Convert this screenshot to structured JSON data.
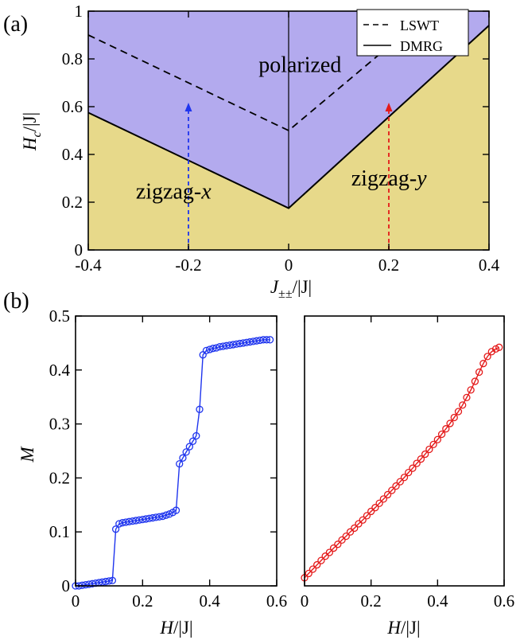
{
  "chart_data": [
    {
      "type": "area",
      "panel_label": "(a)",
      "xlabel_main": "J",
      "xlabel_sub": "±±",
      "xlabel_tail": "/|J|",
      "ylabel_main": "H",
      "ylabel_sub": "c",
      "ylabel_tail": "/|J|",
      "xlim": [
        -0.4,
        0.4
      ],
      "ylim": [
        0,
        1
      ],
      "xticks": [
        -0.4,
        -0.2,
        0,
        0.2,
        0.4
      ],
      "xtick_labels": [
        "-0.4",
        "-0.2",
        "0",
        "0.2",
        "0.4"
      ],
      "yticks": [
        0,
        0.2,
        0.4,
        0.6,
        0.8,
        1
      ],
      "ytick_labels": [
        "0",
        "0.2",
        "0.4",
        "0.6",
        "0.8",
        "1"
      ],
      "legend": {
        "placement": "top-right",
        "entries": [
          {
            "label": "LSWT",
            "style": "dashed"
          },
          {
            "label": "DMRG",
            "style": "solid"
          }
        ]
      },
      "regions": [
        {
          "label": "polarized",
          "color": "#b3aaee",
          "label_at": [
            -0.06,
            0.745
          ]
        },
        {
          "label_main": "zigzag-",
          "label_italic": "x",
          "color": "#e7d98a",
          "label_at": [
            -0.305,
            0.215
          ]
        },
        {
          "label_main": "zigzag-",
          "label_italic": "y",
          "color": "#e7d98a",
          "label_at": [
            0.125,
            0.27
          ]
        }
      ],
      "series": [
        {
          "name": "DMRG",
          "style": "solid",
          "x": [
            -0.4,
            0,
            0.4
          ],
          "y": [
            0.575,
            0.175,
            0.94
          ]
        },
        {
          "name": "LSWT",
          "style": "dashed",
          "x": [
            -0.4,
            0,
            0.284
          ],
          "y": [
            0.9,
            0.5,
            1.0
          ]
        }
      ],
      "phase_line": {
        "x": [
          0,
          0
        ],
        "y": [
          0.175,
          1
        ]
      },
      "arrows": [
        {
          "x": -0.2,
          "y_from": 0,
          "y_to": 0.61,
          "color": "#1f35ee"
        },
        {
          "x": 0.2,
          "y_from": 0,
          "y_to": 0.61,
          "color": "#e41a1a"
        }
      ]
    },
    {
      "type": "line",
      "panel_label": "(b)",
      "ylabel": "M",
      "xlabel_main": "H",
      "xlabel_tail": "/|J|",
      "xlim": [
        0,
        0.6
      ],
      "ylim": [
        0,
        0.5
      ],
      "xticks": [
        0,
        0.2,
        0.4,
        0.6
      ],
      "xtick_labels": [
        "0",
        "0.2",
        "0.4",
        "0.6"
      ],
      "yticks": [
        0,
        0.1,
        0.2,
        0.3,
        0.4,
        0.5
      ],
      "ytick_labels": [
        "0",
        "0.1",
        "0.2",
        "0.3",
        "0.4",
        "0.5"
      ],
      "color": "#1f35ee",
      "x": [
        0.0,
        0.01,
        0.02,
        0.03,
        0.04,
        0.05,
        0.06,
        0.07,
        0.08,
        0.09,
        0.1,
        0.11,
        0.12,
        0.13,
        0.14,
        0.15,
        0.16,
        0.17,
        0.18,
        0.19,
        0.2,
        0.21,
        0.22,
        0.23,
        0.24,
        0.25,
        0.26,
        0.27,
        0.28,
        0.29,
        0.3,
        0.31,
        0.32,
        0.33,
        0.34,
        0.35,
        0.36,
        0.37,
        0.38,
        0.39,
        0.4,
        0.41,
        0.42,
        0.43,
        0.44,
        0.45,
        0.46,
        0.47,
        0.48,
        0.49,
        0.5,
        0.51,
        0.52,
        0.53,
        0.54,
        0.55,
        0.56,
        0.57,
        0.58
      ],
      "y": [
        0.0,
        0.0,
        0.001,
        0.002,
        0.003,
        0.004,
        0.005,
        0.006,
        0.007,
        0.008,
        0.009,
        0.01,
        0.105,
        0.115,
        0.117,
        0.118,
        0.119,
        0.12,
        0.121,
        0.122,
        0.123,
        0.124,
        0.125,
        0.126,
        0.127,
        0.128,
        0.129,
        0.131,
        0.133,
        0.136,
        0.14,
        0.226,
        0.237,
        0.248,
        0.258,
        0.268,
        0.278,
        0.327,
        0.428,
        0.436,
        0.438,
        0.44,
        0.441,
        0.443,
        0.444,
        0.445,
        0.446,
        0.447,
        0.448,
        0.449,
        0.45,
        0.451,
        0.452,
        0.453,
        0.454,
        0.455,
        0.456,
        0.456,
        0.456
      ]
    },
    {
      "type": "line",
      "xlabel_main": "H",
      "xlabel_tail": "/|J|",
      "xlim": [
        0,
        0.6
      ],
      "ylim": [
        0,
        0.5
      ],
      "xticks": [
        0,
        0.2,
        0.4,
        0.6
      ],
      "xtick_labels": [
        "0",
        "0.2",
        "0.4",
        "0.6"
      ],
      "color": "#e41a1a",
      "x": [
        0.0,
        0.0125,
        0.025,
        0.0375,
        0.05,
        0.0625,
        0.075,
        0.0875,
        0.1,
        0.1125,
        0.125,
        0.1375,
        0.15,
        0.1625,
        0.175,
        0.1875,
        0.2,
        0.2125,
        0.225,
        0.2375,
        0.25,
        0.2625,
        0.275,
        0.2875,
        0.3,
        0.3125,
        0.325,
        0.3375,
        0.35,
        0.3625,
        0.375,
        0.3875,
        0.4,
        0.4125,
        0.425,
        0.4375,
        0.45,
        0.4625,
        0.475,
        0.4875,
        0.5,
        0.5125,
        0.525,
        0.5375,
        0.55,
        0.5625,
        0.575,
        0.585
      ],
      "y": [
        0.015,
        0.023,
        0.031,
        0.039,
        0.047,
        0.055,
        0.062,
        0.07,
        0.077,
        0.085,
        0.092,
        0.1,
        0.107,
        0.115,
        0.122,
        0.13,
        0.138,
        0.145,
        0.153,
        0.161,
        0.169,
        0.177,
        0.185,
        0.193,
        0.201,
        0.21,
        0.218,
        0.227,
        0.235,
        0.244,
        0.253,
        0.262,
        0.271,
        0.281,
        0.291,
        0.301,
        0.312,
        0.323,
        0.335,
        0.349,
        0.363,
        0.379,
        0.396,
        0.412,
        0.425,
        0.434,
        0.439,
        0.442
      ]
    }
  ]
}
